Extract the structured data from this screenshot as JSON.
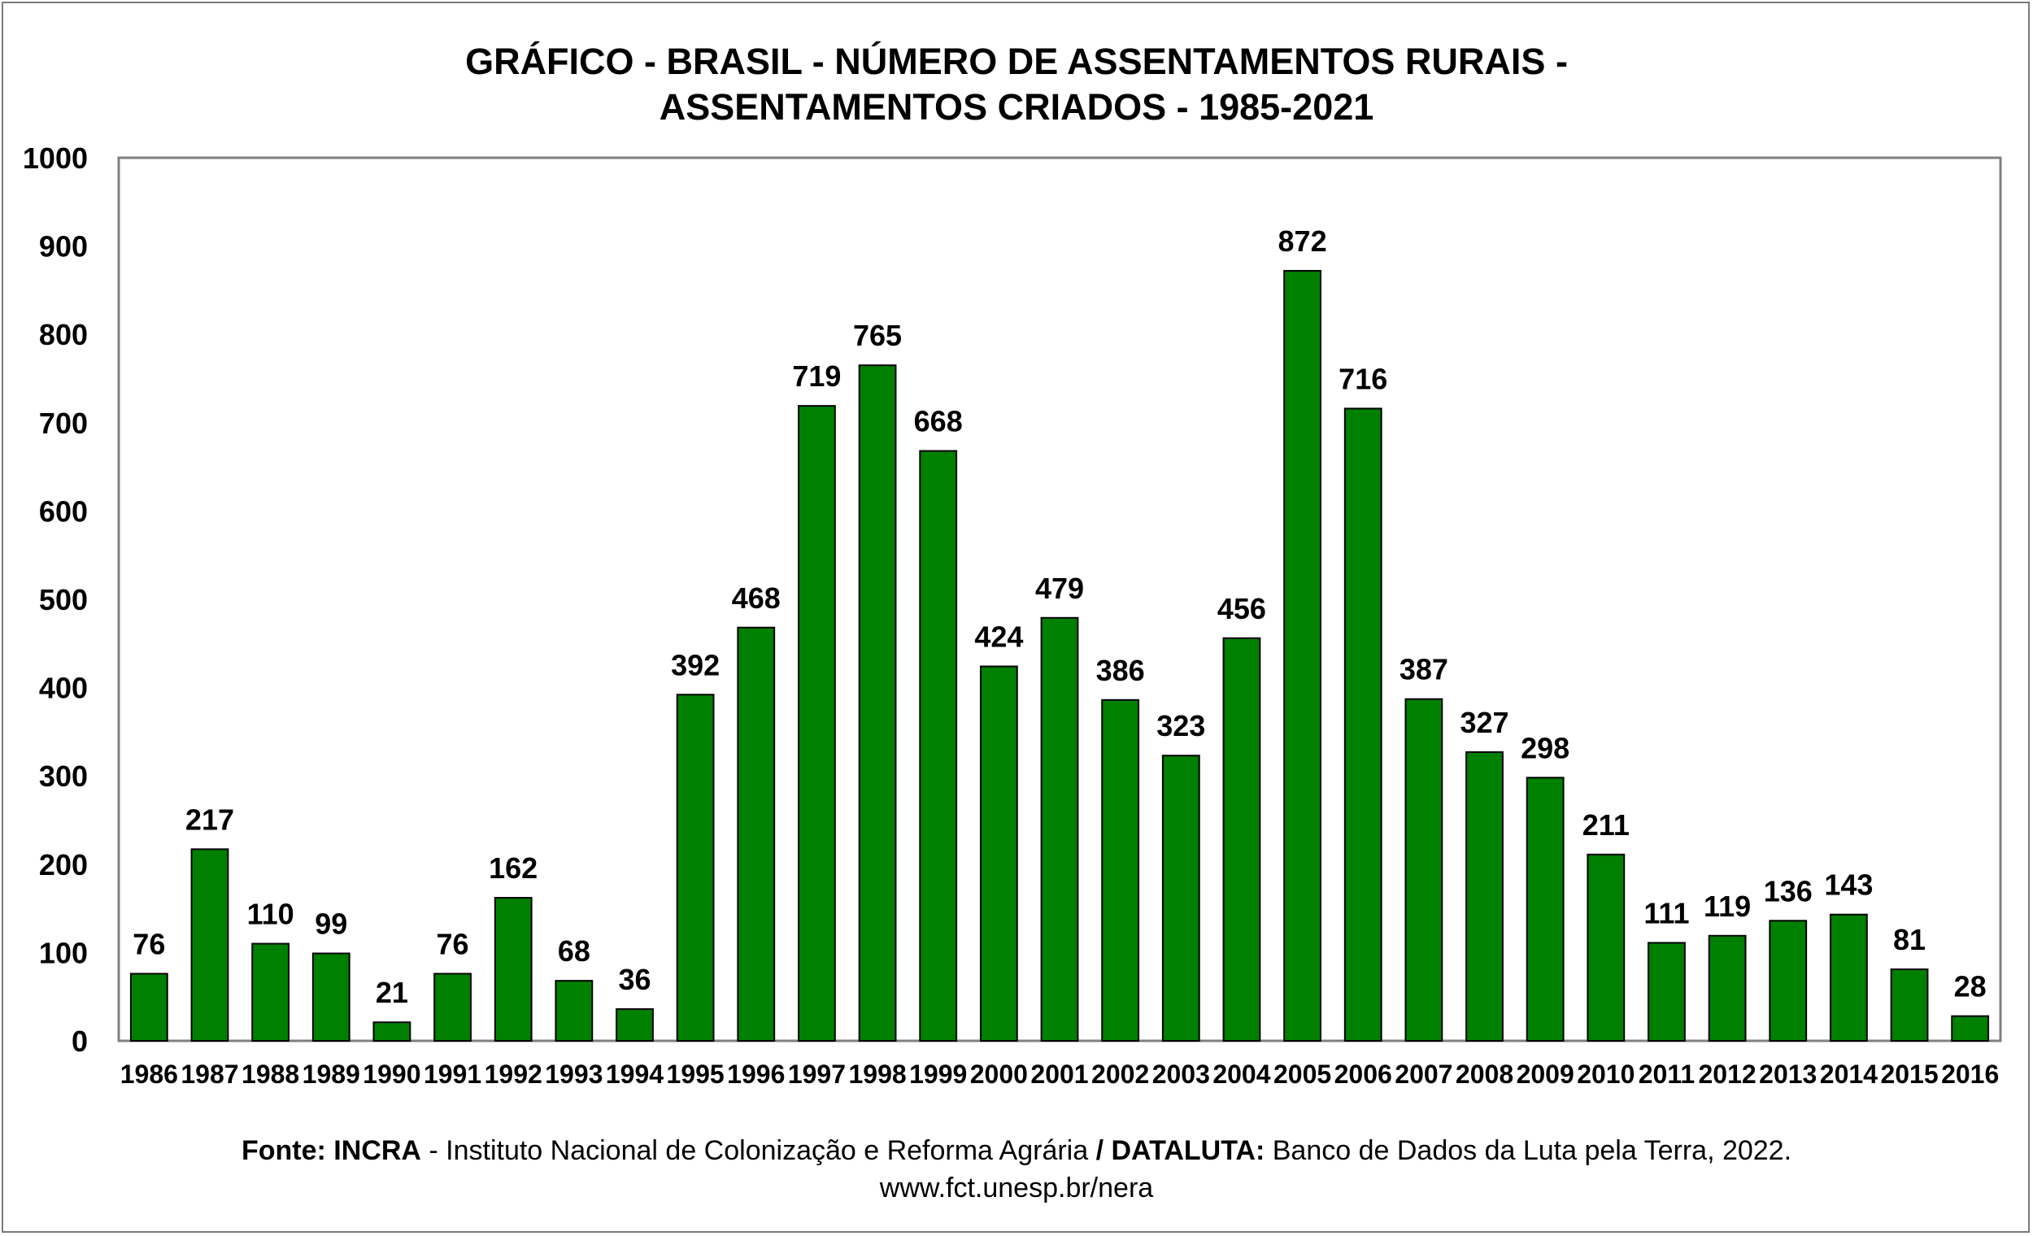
{
  "title_line1": "GRÁFICO - BRASIL - NÚMERO DE ASSENTAMENTOS RURAIS -",
  "title_line2": "ASSENTAMENTOS CRIADOS - 1985-2021",
  "source": {
    "label_fonte": "Fonte:",
    "incra": "INCRA",
    "incra_desc": " - Instituto Nacional de Colonização e Reforma Agrária ",
    "sep": "/ DATALUTA:",
    "dataluta_desc": "  Banco de Dados da Luta pela Terra, 2022.",
    "url": "www.fct.unesp.br/nera"
  },
  "colors": {
    "bar_fill": "#008000",
    "bar_stroke": "#000000",
    "plot_border": "#808080",
    "frame_border": "#7a7a7a"
  },
  "chart_data": {
    "type": "bar",
    "title": "GRÁFICO - BRASIL - NÚMERO DE ASSENTAMENTOS RURAIS - ASSENTAMENTOS CRIADOS - 1985-2021",
    "xlabel": "",
    "ylabel": "",
    "ylim": [
      0,
      1000
    ],
    "yticks": [
      0,
      100,
      200,
      300,
      400,
      500,
      600,
      700,
      800,
      900,
      1000
    ],
    "grid": false,
    "legend": "none",
    "categories": [
      "1986",
      "1987",
      "1988",
      "1989",
      "1990",
      "1991",
      "1992",
      "1993",
      "1994",
      "1995",
      "1996",
      "1997",
      "1998",
      "1999",
      "2000",
      "2001",
      "2002",
      "2003",
      "2004",
      "2005",
      "2006",
      "2007",
      "2008",
      "2009",
      "2010",
      "2011",
      "2012",
      "2013",
      "2014",
      "2015",
      "2016"
    ],
    "values": [
      76,
      217,
      110,
      99,
      21,
      76,
      162,
      68,
      36,
      392,
      468,
      719,
      765,
      668,
      424,
      479,
      386,
      323,
      456,
      872,
      716,
      387,
      327,
      298,
      211,
      111,
      119,
      136,
      143,
      81,
      28
    ]
  }
}
